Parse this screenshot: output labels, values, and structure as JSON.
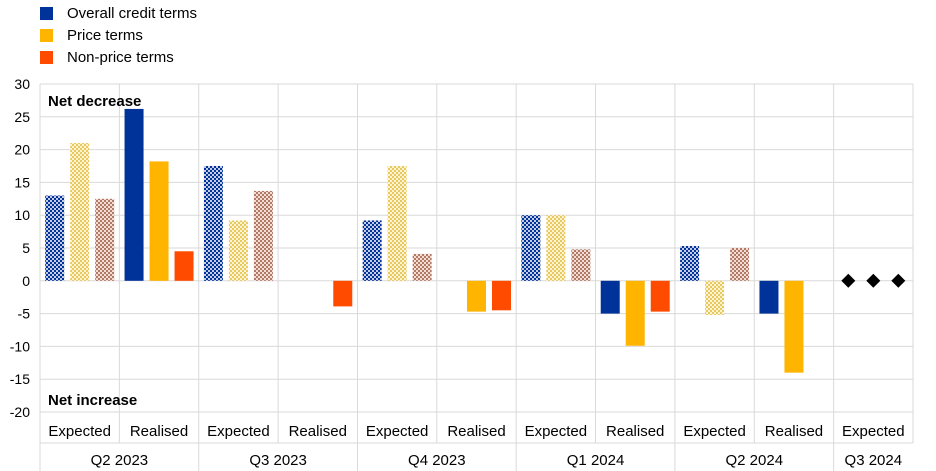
{
  "chart_data": {
    "type": "bar",
    "title": "",
    "xlabel": "",
    "ylabel": "",
    "ylim": [
      -20,
      30
    ],
    "yticks": [
      30,
      25,
      20,
      15,
      10,
      5,
      0,
      -5,
      -10,
      -15,
      -20
    ],
    "grid": true,
    "legend_position": "top-left",
    "annotations": {
      "top": "Net decrease",
      "bottom": "Net increase"
    },
    "colors": {
      "overall": "#003399",
      "price": "#ffb400",
      "nonprice": "#ff4b00"
    },
    "series": [
      {
        "name": "Overall credit terms",
        "key": "overall"
      },
      {
        "name": "Price terms",
        "key": "price"
      },
      {
        "name": "Non-price terms",
        "key": "nonprice"
      }
    ],
    "quarters": [
      "Q2 2023",
      "Q3 2023",
      "Q4 2023",
      "Q1 2024",
      "Q2 2024",
      "Q3 2024"
    ],
    "groups": [
      {
        "quarter": "Q2 2023",
        "label": "Expected",
        "style": "hatched",
        "values": [
          13,
          21,
          12.5
        ]
      },
      {
        "quarter": "Q2 2023",
        "label": "Realised",
        "style": "solid",
        "values": [
          26.2,
          18.2,
          4.5
        ]
      },
      {
        "quarter": "Q3 2023",
        "label": "Expected",
        "style": "hatched",
        "values": [
          17.5,
          9.2,
          13.7
        ]
      },
      {
        "quarter": "Q3 2023",
        "label": "Realised",
        "style": "solid",
        "values": [
          0,
          0,
          -3.9
        ]
      },
      {
        "quarter": "Q4 2023",
        "label": "Expected",
        "style": "hatched",
        "values": [
          9.2,
          17.5,
          4.1
        ]
      },
      {
        "quarter": "Q4 2023",
        "label": "Realised",
        "style": "solid",
        "values": [
          0,
          -4.7,
          -4.5
        ]
      },
      {
        "quarter": "Q1 2024",
        "label": "Expected",
        "style": "hatched",
        "values": [
          10,
          10,
          4.8
        ]
      },
      {
        "quarter": "Q1 2024",
        "label": "Realised",
        "style": "solid",
        "values": [
          -5,
          -9.9,
          -4.7
        ]
      },
      {
        "quarter": "Q2 2024",
        "label": "Expected",
        "style": "hatched",
        "values": [
          5.3,
          -5.2,
          5
        ]
      },
      {
        "quarter": "Q2 2024",
        "label": "Realised",
        "style": "solid",
        "values": [
          -5,
          -14,
          0
        ]
      },
      {
        "quarter": "Q3 2024",
        "label": "Expected",
        "style": "diamond",
        "values": [
          0,
          0,
          0
        ]
      }
    ]
  }
}
